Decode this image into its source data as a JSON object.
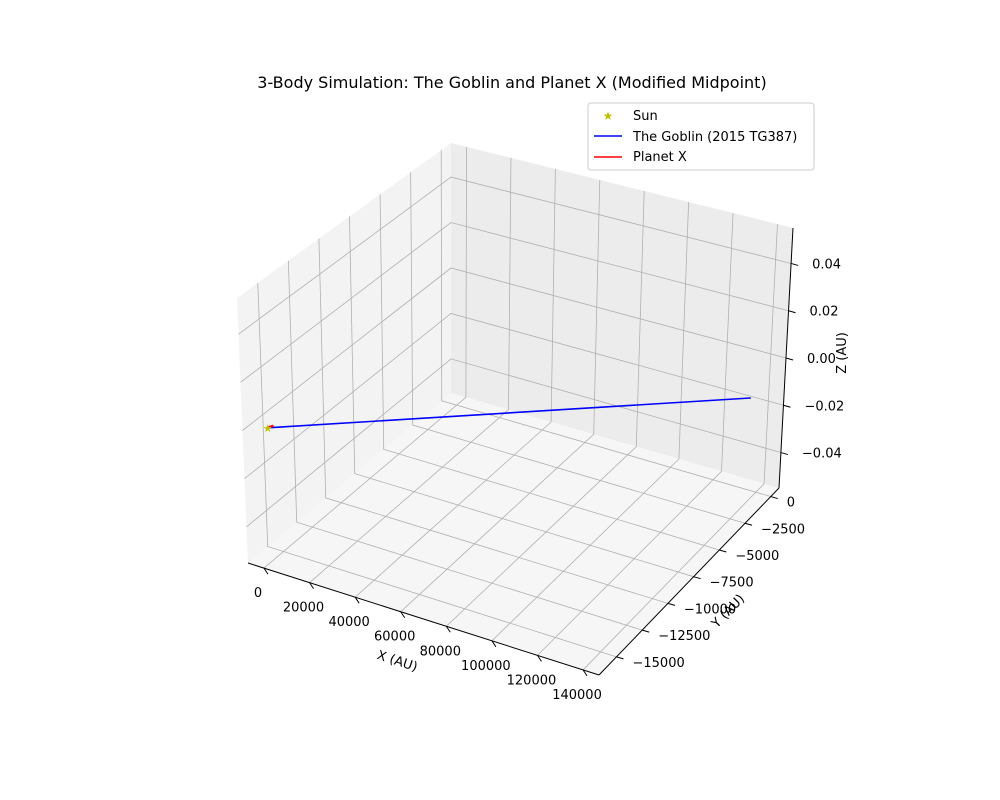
{
  "chart_data": {
    "type": "line",
    "projection": "3d",
    "title": "3-Body Simulation: The Goblin and Planet X (Modified Midpoint)",
    "xlabel": "X (AU)",
    "ylabel": "Y (AU)",
    "zlabel": "Z (AU)",
    "xlim": [
      -7000,
      147000
    ],
    "ylim": [
      -16700,
      800
    ],
    "zlim": [
      -0.055,
      0.055
    ],
    "x_ticks": [
      "0",
      "20000",
      "40000",
      "60000",
      "80000",
      "100000",
      "120000",
      "140000"
    ],
    "y_ticks": [
      "0",
      "−2500",
      "−5000",
      "−7500",
      "−10000",
      "−12500",
      "−15000"
    ],
    "z_ticks": [
      "0.04",
      "0.02",
      "0.00",
      "−0.02",
      "−0.04"
    ],
    "grid": true,
    "legend_position": "upper right",
    "series": [
      {
        "name": "Sun",
        "kind": "marker",
        "marker": "star",
        "color": "#bfbf00",
        "x": [
          0
        ],
        "y": [
          0
        ],
        "z": [
          0
        ]
      },
      {
        "name": "The Goblin (2015 TG387)",
        "kind": "line",
        "color": "#0000ff",
        "x": [
          0,
          142000
        ],
        "y": [
          0,
          -13700
        ],
        "z": [
          0,
          0
        ]
      },
      {
        "name": "Planet X",
        "kind": "line",
        "color": "#ff0000",
        "x": [
          0,
          800
        ],
        "y": [
          0,
          -250
        ],
        "z": [
          0,
          0
        ]
      }
    ]
  }
}
